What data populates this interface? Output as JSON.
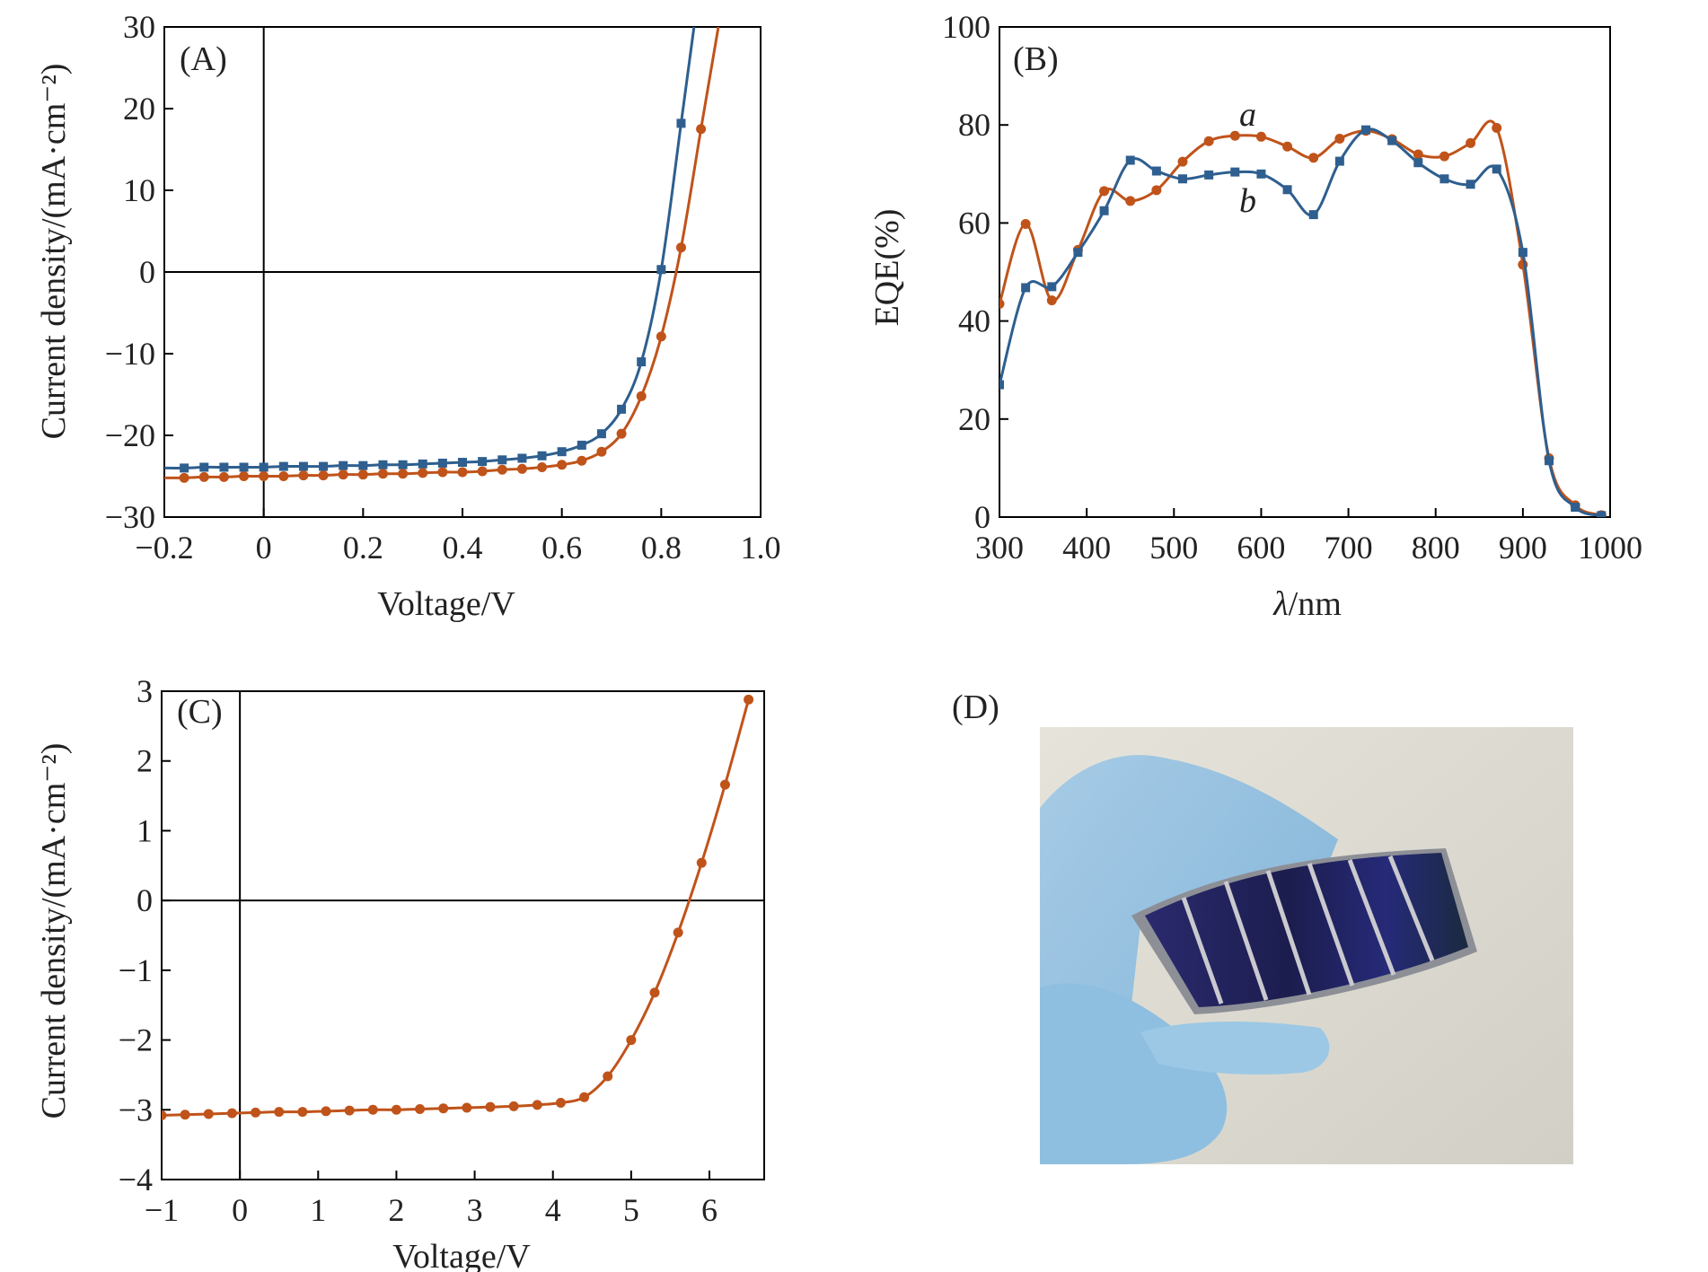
{
  "colors": {
    "series_a": "#c0531a",
    "series_b": "#2e5f8f"
  },
  "chart_data": [
    {
      "panel": "(A)",
      "type": "line",
      "xlabel": "Voltage/V",
      "ylabel": "Current density/(mA·cm⁻²)",
      "xlim": [
        -0.2,
        1.0
      ],
      "ylim": [
        -30,
        30
      ],
      "xticks": [
        -0.2,
        0,
        0.2,
        0.4,
        0.6,
        0.8,
        1.0
      ],
      "xtick_labels": [
        "−0.2",
        "0",
        "0.2",
        "0.4",
        "0.6",
        "0.8",
        "1.0"
      ],
      "yticks": [
        -30,
        -20,
        -10,
        0,
        10,
        20,
        30
      ],
      "ytick_labels": [
        "−30",
        "−20",
        "−10",
        "0",
        "10",
        "20",
        "30"
      ],
      "zero_lines": true,
      "series": [
        {
          "color": "#2e5f8f",
          "marker": "square",
          "x": [
            -0.2,
            -0.16,
            -0.12,
            -0.08,
            -0.04,
            0.0,
            0.04,
            0.08,
            0.12,
            0.16,
            0.2,
            0.24,
            0.28,
            0.32,
            0.36,
            0.4,
            0.44,
            0.48,
            0.52,
            0.56,
            0.6,
            0.64,
            0.68,
            0.72,
            0.76,
            0.8,
            0.84,
            0.866
          ],
          "y": [
            -24.0,
            -24.0,
            -23.9,
            -23.9,
            -23.9,
            -23.9,
            -23.8,
            -23.8,
            -23.8,
            -23.7,
            -23.7,
            -23.6,
            -23.6,
            -23.5,
            -23.4,
            -23.3,
            -23.2,
            -23.0,
            -22.8,
            -22.5,
            -22.0,
            -21.2,
            -19.8,
            -16.8,
            -11.0,
            0.3,
            18.2,
            30.0
          ],
          "marker_indices": [
            1,
            2,
            3,
            4,
            5,
            6,
            7,
            8,
            9,
            10,
            11,
            12,
            13,
            14,
            15,
            16,
            17,
            18,
            19,
            20,
            21,
            22,
            23,
            24,
            25,
            26
          ]
        },
        {
          "color": "#c0531a",
          "marker": "circle",
          "x": [
            -0.2,
            -0.16,
            -0.12,
            -0.08,
            -0.04,
            0.0,
            0.04,
            0.08,
            0.12,
            0.16,
            0.2,
            0.24,
            0.28,
            0.32,
            0.36,
            0.4,
            0.44,
            0.48,
            0.52,
            0.56,
            0.6,
            0.64,
            0.68,
            0.72,
            0.76,
            0.8,
            0.84,
            0.88,
            0.915
          ],
          "y": [
            -25.2,
            -25.2,
            -25.1,
            -25.1,
            -25.0,
            -25.0,
            -25.0,
            -24.9,
            -24.9,
            -24.8,
            -24.8,
            -24.7,
            -24.7,
            -24.6,
            -24.5,
            -24.5,
            -24.4,
            -24.2,
            -24.1,
            -23.9,
            -23.6,
            -23.1,
            -22.0,
            -19.8,
            -15.2,
            -7.9,
            3.0,
            17.5,
            30.0
          ],
          "marker_indices": [
            1,
            2,
            3,
            4,
            5,
            6,
            7,
            8,
            9,
            10,
            11,
            12,
            13,
            14,
            15,
            16,
            17,
            18,
            19,
            20,
            21,
            22,
            23,
            24,
            25,
            26,
            27
          ]
        }
      ]
    },
    {
      "panel": "(B)",
      "type": "line",
      "xlabel": "λ/nm",
      "ylabel": "EQE(%)",
      "xlim": [
        300,
        1000
      ],
      "ylim": [
        0,
        100
      ],
      "xticks": [
        300,
        400,
        500,
        600,
        700,
        800,
        900,
        1000
      ],
      "xtick_labels": [
        "300",
        "400",
        "500",
        "600",
        "700",
        "800",
        "900",
        "1000"
      ],
      "yticks": [
        0,
        20,
        40,
        60,
        80,
        100
      ],
      "ytick_labels": [
        "0",
        "20",
        "40",
        "60",
        "80",
        "100"
      ],
      "zero_lines": false,
      "series": [
        {
          "label": "a",
          "color": "#c0531a",
          "marker": "circle",
          "label_pos": [
            573,
            82
          ],
          "x": [
            300,
            330,
            360,
            390,
            420,
            450,
            480,
            510,
            540,
            570,
            600,
            630,
            660,
            690,
            720,
            750,
            780,
            810,
            840,
            870,
            900,
            930,
            960,
            990
          ],
          "y": [
            43.5,
            59.8,
            44.2,
            54.5,
            66.5,
            64.5,
            66.7,
            72.5,
            76.7,
            77.8,
            77.6,
            75.6,
            73.3,
            77.2,
            78.8,
            77.1,
            74.0,
            73.6,
            76.3,
            79.4,
            51.5,
            12.0,
            2.4,
            0.4
          ]
        },
        {
          "label": "b",
          "color": "#2e5f8f",
          "marker": "square",
          "label_pos": [
            573,
            62
          ],
          "x": [
            300,
            330,
            360,
            390,
            420,
            450,
            480,
            510,
            540,
            570,
            600,
            630,
            660,
            690,
            720,
            750,
            780,
            810,
            840,
            870,
            900,
            930,
            960,
            990
          ],
          "y": [
            27.0,
            46.8,
            47.0,
            54.0,
            62.5,
            72.8,
            70.6,
            69.0,
            69.8,
            70.4,
            70.0,
            66.8,
            61.7,
            72.6,
            79.0,
            76.8,
            72.3,
            69.0,
            67.9,
            71.0,
            54.0,
            11.5,
            2.0,
            0.3
          ]
        }
      ]
    },
    {
      "panel": "(C)",
      "type": "line",
      "xlabel": "Voltage/V",
      "ylabel": "Current density/(mA·cm⁻²)",
      "xlim": [
        -1,
        6.7
      ],
      "ylim": [
        -4,
        3
      ],
      "xticks": [
        -1,
        0,
        1,
        2,
        3,
        4,
        5,
        6
      ],
      "xtick_labels": [
        "−1",
        "0",
        "1",
        "2",
        "3",
        "4",
        "5",
        "6"
      ],
      "yticks": [
        -4,
        -3,
        -2,
        -1,
        0,
        1,
        2,
        3
      ],
      "ytick_labels": [
        "−4",
        "−3",
        "−2",
        "−1",
        "0",
        "1",
        "2",
        "3"
      ],
      "zero_lines": true,
      "series": [
        {
          "color": "#c0531a",
          "marker": "circle",
          "x": [
            -1.0,
            -0.7,
            -0.4,
            -0.1,
            0.2,
            0.5,
            0.8,
            1.1,
            1.4,
            1.7,
            2.0,
            2.3,
            2.6,
            2.9,
            3.2,
            3.5,
            3.8,
            4.1,
            4.4,
            4.7,
            5.0,
            5.3,
            5.6,
            5.9,
            6.2,
            6.5
          ],
          "y": [
            -3.08,
            -3.07,
            -3.06,
            -3.05,
            -3.04,
            -3.03,
            -3.03,
            -3.02,
            -3.01,
            -3.0,
            -3.0,
            -2.99,
            -2.98,
            -2.97,
            -2.96,
            -2.95,
            -2.93,
            -2.9,
            -2.82,
            -2.52,
            -2.0,
            -1.32,
            -0.46,
            0.54,
            1.66,
            2.88
          ]
        }
      ]
    }
  ],
  "panel_d": {
    "label": "(D)"
  }
}
